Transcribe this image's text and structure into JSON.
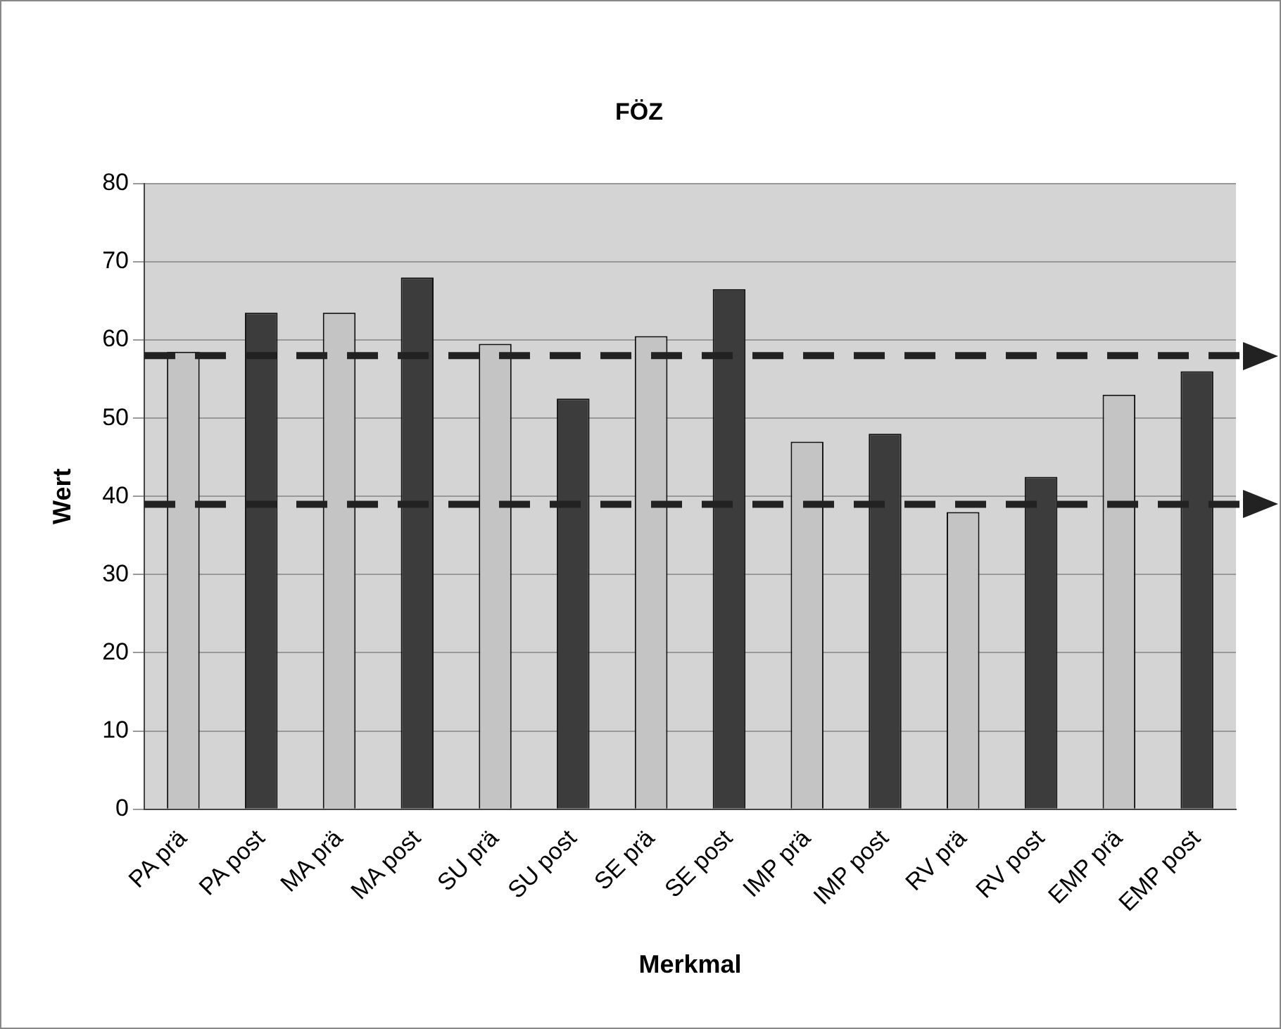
{
  "chart_data": {
    "type": "bar",
    "title": "FÖZ",
    "xlabel": "Merkmal",
    "ylabel": "Wert",
    "categories": [
      "PA prä",
      "PA post",
      "MA prä",
      "MA post",
      "SU prä",
      "SU post",
      "SE prä",
      "SE post",
      "IMP prä",
      "IMP post",
      "RV prä",
      "RV post",
      "EMP prä",
      "EMP post"
    ],
    "values": [
      58.5,
      63.5,
      63.5,
      68,
      59.5,
      52.5,
      60.5,
      66.5,
      47,
      48,
      38,
      42.5,
      53,
      56
    ],
    "colors": [
      "#c4c4c4",
      "#3c3c3c",
      "#c4c4c4",
      "#3c3c3c",
      "#c4c4c4",
      "#3c3c3c",
      "#c4c4c4",
      "#3c3c3c",
      "#c4c4c4",
      "#3c3c3c",
      "#c4c4c4",
      "#3c3c3c",
      "#c4c4c4",
      "#3c3c3c"
    ],
    "ylim": [
      0,
      80
    ],
    "yticks": [
      0,
      10,
      20,
      30,
      40,
      50,
      60,
      70,
      80
    ],
    "grid": "y",
    "legend": false,
    "ref_lines": [
      {
        "axis": "y",
        "value": 58,
        "color": "#222222",
        "line_style": "dashed"
      },
      {
        "axis": "y",
        "value": 39,
        "color": "#222222",
        "line_style": "dashed"
      }
    ]
  }
}
